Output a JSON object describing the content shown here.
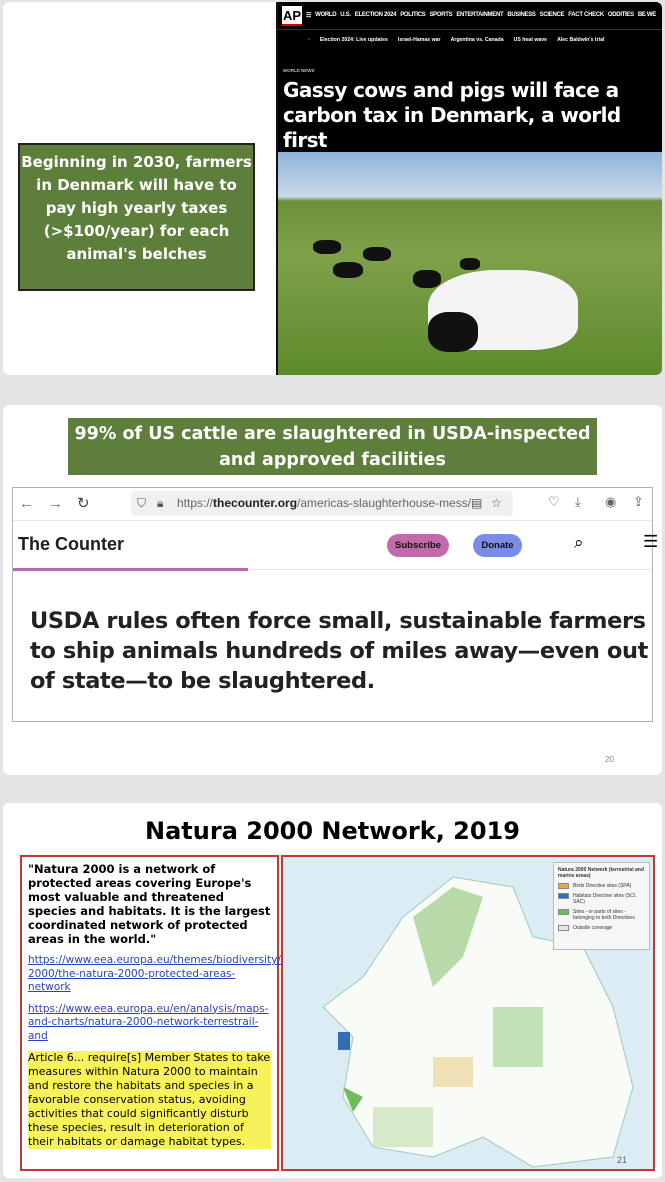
{
  "slide1": {
    "callout": "Beginning in 2030, farmers in Denmark will have to pay high yearly taxes (>$100/year) for each animal's belches",
    "ap": {
      "logo": "AP",
      "nav": [
        "WORLD",
        "U.S.",
        "ELECTION 2024",
        "POLITICS",
        "SPORTS",
        "ENTERTAINMENT",
        "BUSINESS",
        "SCIENCE",
        "FACT CHECK",
        "ODDITIES",
        "BE WE"
      ],
      "subnav": [
        "Election 2024: Live updates",
        "Israel-Hamas war",
        "Argentina vs. Canada",
        "US heat wave",
        "Alec Baldwin's trial"
      ],
      "category": "WORLD NEWS",
      "headline": "Gassy cows and pigs will face a carbon tax in Denmark, a world first"
    }
  },
  "slide2": {
    "banner": "99% of US cattle are slaughtered in USDA-inspected and approved facilities",
    "browser": {
      "url_prefix": "https://",
      "url_domain": "thecounter.org",
      "url_path": "/americas-slaughterhouse-mess/"
    },
    "site": {
      "logo": "The Counter",
      "subscribe": "Subscribe",
      "donate": "Donate",
      "subscribe_color": "#c06aab",
      "donate_color": "#7b8ce6"
    },
    "article": "USDA rules often force small, sustainable farmers to ship animals hundreds of miles away—even out of state—to be slaughtered.",
    "page_number": "20"
  },
  "slide3": {
    "title": "Natura 2000 Network, 2019",
    "quote": "\"Natura 2000 is a network of protected areas covering Europe's most valuable and threatened species and habitats. It is the largest coordinated network of protected areas in the world.\"",
    "links": [
      "https://www.eea.europa.eu/themes/biodiversity/natura-2000/the-natura-2000-protected-areas-network",
      "https://www.eea.europa.eu/en/analysis/maps-and-charts/natura-2000-network-terrestrail-and"
    ],
    "highlight": "Article 6... require[s] Member States to take measures within Natura 2000 to maintain and restore the habitats and species in a favorable conservation status, avoiding activities that could significantly disturb these species, result in deterioration of their habitats or damage habitat types.",
    "legend": {
      "title": "Natura 2000 Network (terrestrial and marine areas)",
      "items": [
        {
          "label": "Birds Directive sites (SPA)",
          "color": "#f0a63a"
        },
        {
          "label": "Habitats Directive sites (SCI, SAC)",
          "color": "#2f6fb2"
        },
        {
          "label": "Sites - or parts of sites - belonging to both Directives",
          "color": "#6dbd5a"
        },
        {
          "label": "Outside coverage",
          "color": "#e4e4e4"
        }
      ]
    },
    "page_number": "21"
  }
}
